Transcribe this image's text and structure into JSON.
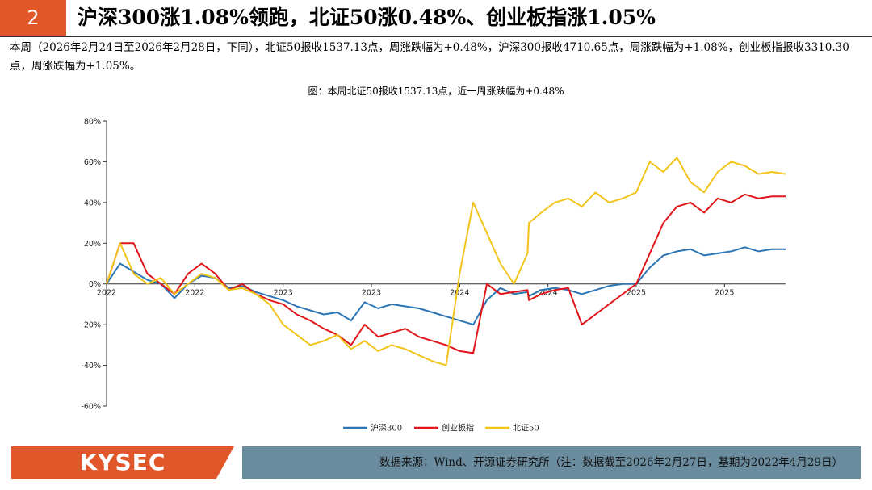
{
  "header": {
    "section_number": "2",
    "title": "沪深300涨1.08%领跑，北证50涨0.48%、创业板指涨1.05%"
  },
  "summary_text": "本周（2026年2月24日至2026年2月28日，下同），北证50报收1537.13点，周涨跌幅为+0.48%，沪深300报收4710.65点，周涨跌幅为+1.08%，创业板指报收3310.30点，周涨跌幅为+1.05%。",
  "footer": {
    "logo_text": "KYSEC",
    "source_text": "数据来源：Wind、开源证券研究所（注：数据截至2026年2月27日，基期为2022年4月29日）"
  },
  "colors": {
    "accent": "#e2572a",
    "footer_bar": "#6b8c9e",
    "csi300": "#2e75b6",
    "chinext": "#e0161a",
    "bse50": "#f2c41a"
  },
  "chart_data": {
    "type": "line",
    "title": "图：本周北证50报收1537.13点，近一周涨跌幅为+0.48%",
    "xlabel": "",
    "ylabel": "",
    "ylim": [
      -60,
      80
    ],
    "yticks": [
      "-60%",
      "-40%",
      "-20%",
      "0%",
      "20%",
      "40%",
      "60%",
      "80%"
    ],
    "x_tick_labels": [
      "2022",
      "2022",
      "2023",
      "2023",
      "2024",
      "2024",
      "2025",
      "2025"
    ],
    "x_tick_positions": [
      0.0,
      0.13,
      0.26,
      0.39,
      0.52,
      0.65,
      0.78,
      0.91
    ],
    "grid": false,
    "legend_position": "bottom",
    "x": [
      0.0,
      0.02,
      0.04,
      0.06,
      0.08,
      0.1,
      0.12,
      0.14,
      0.16,
      0.18,
      0.2,
      0.22,
      0.24,
      0.26,
      0.28,
      0.3,
      0.32,
      0.34,
      0.36,
      0.38,
      0.4,
      0.42,
      0.44,
      0.46,
      0.48,
      0.5,
      0.52,
      0.54,
      0.56,
      0.58,
      0.6,
      0.62,
      0.622,
      0.64,
      0.66,
      0.68,
      0.7,
      0.72,
      0.74,
      0.76,
      0.78,
      0.8,
      0.82,
      0.84,
      0.86,
      0.88,
      0.9,
      0.92,
      0.94,
      0.96,
      0.98,
      1.0
    ],
    "series": [
      {
        "name": "沪深300",
        "values": [
          0,
          10,
          6,
          2,
          0,
          -7,
          0,
          4,
          3,
          -2,
          -1,
          -4,
          -6,
          -8,
          -11,
          -13,
          -15,
          -14,
          -18,
          -9,
          -12,
          -10,
          -11,
          -12,
          -14,
          -16,
          -18,
          -20,
          -8,
          -2,
          -5,
          -4,
          -6,
          -3,
          -2,
          -3,
          -5,
          -3,
          -1,
          0,
          0,
          8,
          14,
          16,
          17,
          14,
          15,
          16,
          18,
          16,
          17,
          17
        ]
      },
      {
        "name": "创业板指",
        "values": [
          0,
          20,
          20,
          5,
          0,
          -5,
          5,
          10,
          5,
          -3,
          0,
          -5,
          -8,
          -10,
          -15,
          -18,
          -22,
          -25,
          -30,
          -20,
          -26,
          -24,
          -22,
          -26,
          -28,
          -30,
          -33,
          -34,
          0,
          -5,
          -4,
          -3,
          -8,
          -5,
          -3,
          -2,
          -20,
          -15,
          -10,
          -5,
          0,
          15,
          30,
          38,
          40,
          35,
          42,
          40,
          44,
          42,
          43,
          43
        ]
      },
      {
        "name": "北证50",
        "values": [
          0,
          20,
          5,
          0,
          3,
          -5,
          0,
          5,
          3,
          -3,
          -2,
          -5,
          -10,
          -20,
          -25,
          -30,
          -28,
          -25,
          -32,
          -28,
          -33,
          -30,
          -32,
          -35,
          -38,
          -40,
          5,
          40,
          25,
          10,
          0,
          15,
          30,
          35,
          40,
          42,
          38,
          45,
          40,
          42,
          45,
          60,
          55,
          62,
          50,
          45,
          55,
          60,
          58,
          54,
          55,
          54
        ]
      }
    ]
  }
}
